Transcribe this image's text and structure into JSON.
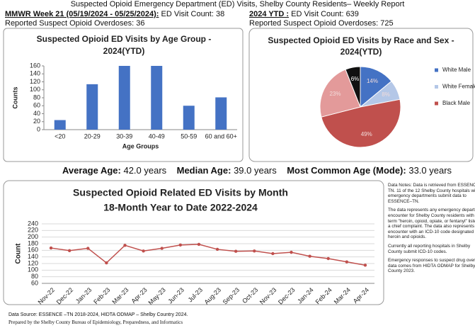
{
  "header": {
    "title": "Suspected Opioid Emergency Department (ED) Visits, Shelby County Residents– Weekly Report",
    "week": {
      "label": "MMWR Week 21 (05/19/2024 - 05/25/2024):",
      "visits": "ED Visit Count: 38",
      "overdoses": "Reported Suspect Opioid Overdoses: 36"
    },
    "ytd": {
      "label": "2024 YTD :",
      "visits": "ED Visit Count: 639",
      "overdoses": "Reported Suspect Opioid Overdoses: 725"
    }
  },
  "stats": [
    {
      "label": "Average Age:",
      "value": "42.0 years"
    },
    {
      "label": "Median Age:",
      "value": "39.0 years"
    },
    {
      "label": "Most Common Age (Mode):",
      "value": "33.0 years"
    }
  ],
  "chart_data": [
    {
      "type": "bar",
      "title": [
        "Suspected Opioid ED Visits by Age Group -",
        "2024(YTD)"
      ],
      "x_label": "Age Groups",
      "y_label": "Counts",
      "categories": [
        "<20",
        "20-29",
        "30-39",
        "40-49",
        "50-59",
        "60 and 60+"
      ],
      "values": [
        24,
        114,
        160,
        160,
        60,
        81
      ],
      "color": "#4472c4",
      "ylim": [
        0,
        160
      ],
      "yticks": [
        0,
        20,
        40,
        60,
        80,
        100,
        120,
        140,
        160
      ],
      "grid": false
    },
    {
      "type": "pie",
      "title": [
        "Suspected Opioid ED Visits by Race and Sex -",
        "2024(YTD)"
      ],
      "categories": [
        "White Male",
        "White Female",
        "Black Male",
        null,
        null
      ],
      "values": [
        14,
        8,
        49,
        23,
        6
      ],
      "value_labels": [
        "14%",
        "8%",
        "49%",
        "23%",
        "6%"
      ],
      "colors": [
        "#4472c4",
        "#b4c7e7",
        "#c0504d",
        "#e39a9a",
        "#111111"
      ]
    },
    {
      "type": "line",
      "title": [
        "Suspected Opioid Related ED Visits by Month",
        "18-Month Year to Date 2022-2024"
      ],
      "y_label": "Count",
      "categories": [
        "Nov-22",
        "Dec-22",
        "Jan-23",
        "Feb-23",
        "Mar-23",
        "Apr-23",
        "May-23",
        "Jun-23",
        "Jul-23",
        "Aug-23",
        "Sep-23",
        "Oct-23",
        "Nov-23",
        "Dec-23",
        "Jan-24",
        "Feb-24",
        "Mar-24",
        "Apr-24"
      ],
      "values": [
        167,
        159,
        166,
        122,
        175,
        158,
        166,
        176,
        178,
        163,
        157,
        158,
        150,
        154,
        142,
        135,
        125,
        115
      ],
      "color": "#c0504d",
      "ylim": [
        60,
        240
      ],
      "yticks": [
        60,
        80,
        100,
        120,
        140,
        160,
        180,
        200,
        220,
        240
      ],
      "grid": true
    }
  ],
  "notes": [
    "Data Notes:  Data is retrieved from ESSENCE-TN. 11 of the 12 Shelby County hospitals with emergency departments submit data to ESSENCE–TN.",
    "The data represents any emergency department encounter for Shelby County residents with the term \"heroin, opioid, opiate, or fentanyl\" listed as a chief complaint. The data also represents any encounter with an ICD-10 code designated for heroin and opioids.",
    "Currently all  reporting hospitals in Shelby County submit ICD-10 codes.",
    "Emergency responses to suspect drug overdose data comes from HIDTA ODMAP for Shelby County 2023."
  ],
  "footer": [
    "Data Source: ESSENCE –TN 2018-2024, HIDTA ODMAP – Shelby Country 2024.",
    "Prepared by the Shelby County Bureau of Epidemiology, Preparedness, and Informatics"
  ]
}
